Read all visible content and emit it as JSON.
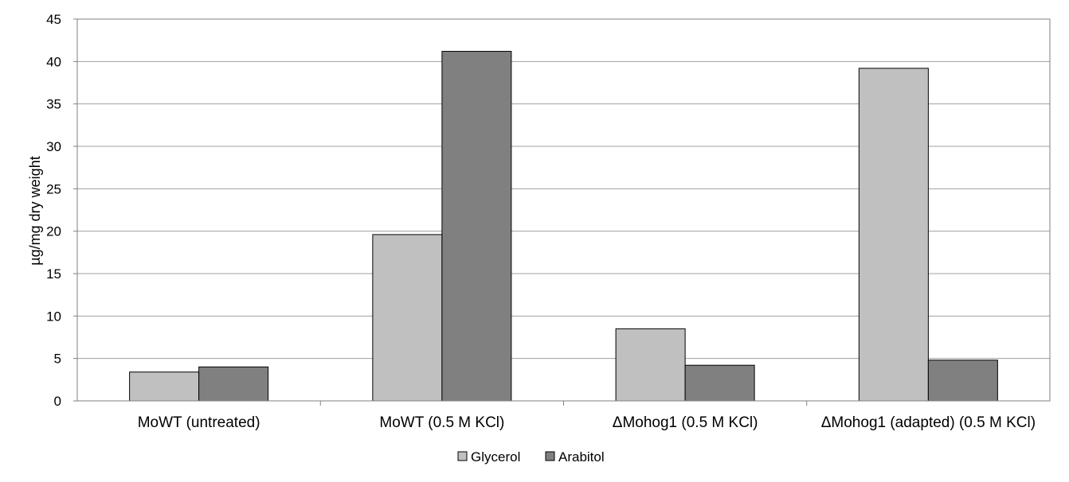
{
  "chart_data": {
    "type": "bar",
    "title": "",
    "xlabel": "",
    "ylabel": "µg/mg dry weight",
    "ylim": [
      0,
      45
    ],
    "yticks": [
      0,
      5,
      10,
      15,
      20,
      25,
      30,
      35,
      40,
      45
    ],
    "grid": true,
    "legend_position": "bottom",
    "categories": [
      "MoWT (untreated)",
      "MoWT  (0.5 M KCl)",
      "ΔMohog1 (0.5 M KCl)",
      "ΔMohog1 (adapted) (0.5 M KCl)"
    ],
    "series": [
      {
        "name": "Glycerol",
        "color": "#c0c0c0",
        "values": [
          3.4,
          19.6,
          8.5,
          39.2
        ]
      },
      {
        "name": "Arabitol",
        "color": "#808080",
        "values": [
          4.0,
          41.2,
          4.2,
          4.8
        ]
      }
    ]
  }
}
